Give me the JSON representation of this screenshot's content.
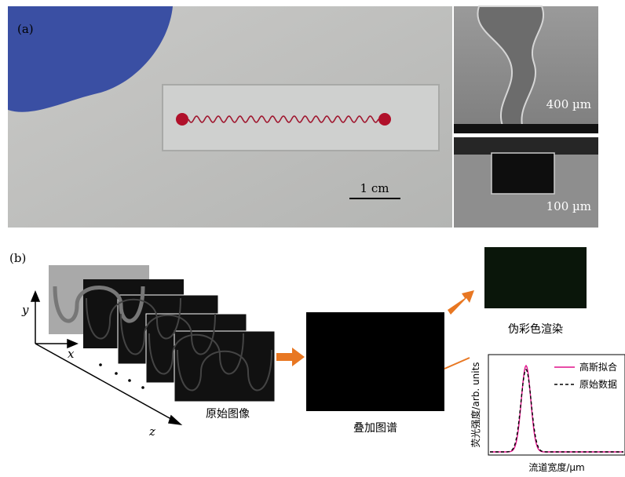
{
  "panels": {
    "a": {
      "label": "(a)",
      "scale_bars": [
        "1 cm",
        "400 µm",
        "100 µm"
      ]
    },
    "b": {
      "label": "(b)",
      "axes": {
        "x": "x",
        "y": "y",
        "z": "z"
      },
      "captions": {
        "raw": "原始图像",
        "overlay": "叠加图谱",
        "pseudo": "伪彩色渲染"
      },
      "plot": {
        "legend": [
          "高斯拟合",
          "原始数据"
        ],
        "y_label": "荧光强度/arb. units",
        "x_label": "流道宽度/µm"
      }
    }
  }
}
